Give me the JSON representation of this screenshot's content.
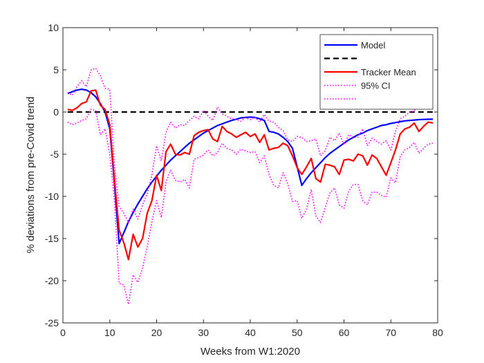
{
  "chart_data": {
    "type": "line",
    "title": "",
    "xlabel": "Weeks from W1:2020",
    "ylabel": "% deviations from pre-Covid trend",
    "xlim": [
      0,
      80
    ],
    "ylim": [
      -25,
      10
    ],
    "xticks": [
      0,
      10,
      20,
      30,
      40,
      50,
      60,
      70,
      80
    ],
    "yticks": [
      -25,
      -20,
      -15,
      -10,
      -5,
      0,
      5,
      10
    ],
    "grid": false,
    "legend_position": "top-right",
    "series": [
      {
        "name": "Model",
        "color": "#0000ff",
        "style": "solid",
        "x": [
          1,
          2,
          3,
          4,
          5,
          6,
          7,
          8,
          9,
          10,
          11,
          12,
          13,
          14,
          15,
          16,
          17,
          18,
          19,
          20,
          21,
          22,
          23,
          24,
          25,
          26,
          27,
          28,
          29,
          30,
          31,
          32,
          33,
          34,
          35,
          36,
          37,
          38,
          39,
          40,
          41,
          42,
          43,
          44,
          45,
          46,
          47,
          48,
          49,
          50,
          51,
          52,
          53,
          54,
          55,
          56,
          57,
          58,
          59,
          60,
          61,
          62,
          63,
          64,
          65,
          66,
          67,
          68,
          69,
          70,
          71,
          72,
          73,
          74,
          75,
          76,
          77,
          78,
          79
        ],
        "y": [
          2.2,
          2.4,
          2.6,
          2.7,
          2.6,
          2.3,
          1.8,
          1.0,
          0,
          -2.0,
          -8.5,
          -15.6,
          -14.3,
          -13.0,
          -11.9,
          -10.9,
          -10.0,
          -9.1,
          -8.3,
          -7.6,
          -6.9,
          -6.3,
          -5.7,
          -5.2,
          -4.7,
          -4.2,
          -3.7,
          -3.3,
          -2.9,
          -2.5,
          -2.2,
          -1.9,
          -1.6,
          -1.4,
          -1.2,
          -1.0,
          -0.85,
          -0.7,
          -0.65,
          -0.6,
          -0.65,
          -0.8,
          -1.0,
          -2.3,
          -2.4,
          -2.6,
          -3.0,
          -3.5,
          -4.3,
          -6.5,
          -8.7,
          -7.9,
          -7.2,
          -6.6,
          -6.0,
          -5.4,
          -4.9,
          -4.5,
          -4.1,
          -3.7,
          -3.3,
          -3.0,
          -2.7,
          -2.5,
          -2.2,
          -2.0,
          -1.8,
          -1.6,
          -1.5,
          -1.35,
          -1.25,
          -1.15,
          -1.05,
          -1.0,
          -0.95,
          -0.9,
          -0.88,
          -0.86,
          -0.85
        ]
      },
      {
        "name": "",
        "color": "#000000",
        "style": "dashed",
        "x": [
          1,
          79
        ],
        "y": [
          0,
          0
        ]
      },
      {
        "name": "Tracker Mean",
        "color": "#ff0000",
        "style": "solid",
        "x": [
          1,
          2,
          3,
          4,
          5,
          6,
          7,
          8,
          9,
          10,
          11,
          12,
          13,
          14,
          15,
          16,
          17,
          18,
          19,
          20,
          21,
          22,
          23,
          24,
          25,
          26,
          27,
          28,
          29,
          30,
          31,
          32,
          33,
          34,
          35,
          36,
          37,
          38,
          39,
          40,
          41,
          42,
          43,
          44,
          45,
          46,
          47,
          48,
          49,
          50,
          51,
          52,
          53,
          54,
          55,
          56,
          57,
          58,
          59,
          60,
          61,
          62,
          63,
          64,
          65,
          66,
          67,
          68,
          69,
          70,
          71,
          72,
          73,
          74,
          75,
          76,
          77,
          78,
          79
        ],
        "y": [
          0.3,
          0.2,
          0.5,
          1.0,
          1.2,
          2.5,
          2.6,
          0.8,
          0.3,
          -1.5,
          -8.0,
          -14.0,
          -15.5,
          -17.5,
          -14.5,
          -16.0,
          -15.0,
          -12.0,
          -10.5,
          -7.5,
          -9.3,
          -4.7,
          -3.8,
          -5.0,
          -5.1,
          -4.8,
          -5.0,
          -2.8,
          -2.4,
          -2.2,
          -2.1,
          -3.2,
          -3.5,
          -1.7,
          -2.3,
          -2.6,
          -3.0,
          -2.7,
          -2.4,
          -2.9,
          -2.6,
          -3.6,
          -2.7,
          -4.5,
          -4.3,
          -4.2,
          -3.7,
          -4.0,
          -5.2,
          -6.6,
          -7.4,
          -6.5,
          -5.5,
          -7.9,
          -8.3,
          -6.2,
          -6.3,
          -6.5,
          -7.4,
          -5.7,
          -5.6,
          -5.8,
          -5.0,
          -5.2,
          -6.3,
          -5.1,
          -5.5,
          -6.5,
          -7.5,
          -6.0,
          -4.5,
          -2.6,
          -2.0,
          -1.8,
          -1.3,
          -2.3,
          -1.7,
          -1.2,
          -1.3
        ]
      },
      {
        "name": "95% CI",
        "color": "#ff00ff",
        "style": "dotted",
        "x": [
          1,
          2,
          3,
          4,
          5,
          6,
          7,
          8,
          9,
          10,
          11,
          12,
          13,
          14,
          15,
          16,
          17,
          18,
          19,
          20,
          21,
          22,
          23,
          24,
          25,
          26,
          27,
          28,
          29,
          30,
          31,
          32,
          33,
          34,
          35,
          36,
          37,
          38,
          39,
          40,
          41,
          42,
          43,
          44,
          45,
          46,
          47,
          48,
          49,
          50,
          51,
          52,
          53,
          54,
          55,
          56,
          57,
          58,
          59,
          60,
          61,
          62,
          63,
          64,
          65,
          66,
          67,
          68,
          69,
          70,
          71,
          72,
          73,
          74,
          75,
          76,
          77,
          78,
          79
        ],
        "y": [
          2.3,
          2.0,
          3.0,
          3.7,
          3.0,
          5.0,
          5.2,
          4.3,
          2.8,
          2.7,
          -6.2,
          -11.2,
          -12.0,
          -13.1,
          -11.5,
          -12.7,
          -11.0,
          -9.7,
          -7.5,
          -4.0,
          -5.8,
          -2.4,
          -1.2,
          -1.9,
          -1.5,
          -1.6,
          -1.0,
          -0.5,
          -0.8,
          0.2,
          -0.5,
          -1.0,
          0.6,
          -0.2,
          -0.5,
          -0.8,
          -0.9,
          -1.1,
          -0.7,
          -0.9,
          -0.6,
          -1.2,
          -0.3,
          -1.1,
          -1.2,
          -1.8,
          -2.2,
          -3.3,
          -3.5,
          -2.9,
          -3.0,
          -3.5,
          -3.4,
          -3.2,
          -5.2,
          -4.6,
          -3.0,
          -3.4,
          -2.5,
          -3.9,
          -2.7,
          -3.0,
          -3.0,
          -2.0,
          -4.0,
          -3.1,
          -3.5,
          -3.8,
          -3.4,
          -4.5,
          -2.3,
          -0.8,
          -0.5,
          0,
          0.1,
          1.3,
          1.6,
          1.4,
          1.7
        ]
      },
      {
        "name": "",
        "color": "#ff00ff",
        "style": "dotted",
        "x": [
          1,
          2,
          3,
          4,
          5,
          6,
          7,
          8,
          9,
          10,
          11,
          12,
          13,
          14,
          15,
          16,
          17,
          18,
          19,
          20,
          21,
          22,
          23,
          24,
          25,
          26,
          27,
          28,
          29,
          30,
          31,
          32,
          33,
          34,
          35,
          36,
          37,
          38,
          39,
          40,
          41,
          42,
          43,
          44,
          45,
          46,
          47,
          48,
          49,
          50,
          51,
          52,
          53,
          54,
          55,
          56,
          57,
          58,
          59,
          60,
          61,
          62,
          63,
          64,
          65,
          66,
          67,
          68,
          69,
          70,
          71,
          72,
          73,
          74,
          75,
          76,
          77,
          78,
          79
        ],
        "y": [
          -1.2,
          -1.5,
          -1.3,
          -1.0,
          -0.8,
          0.3,
          0.2,
          -2.7,
          -2.0,
          -5.0,
          -10.5,
          -20.3,
          -20.5,
          -22.8,
          -19.3,
          -20.2,
          -18.5,
          -16.0,
          -13.0,
          -10.5,
          -12.5,
          -8.3,
          -6.9,
          -8.1,
          -8.3,
          -8.0,
          -9.0,
          -5.6,
          -5.4,
          -5.1,
          -4.5,
          -5.2,
          -4.8,
          -3.7,
          -4.3,
          -4.5,
          -5.0,
          -4.4,
          -4.6,
          -4.8,
          -4.7,
          -6.0,
          -5.2,
          -7.4,
          -8.7,
          -9.0,
          -7.2,
          -8.5,
          -10.6,
          -10.5,
          -12.6,
          -11.5,
          -9.2,
          -12.3,
          -13.1,
          -11.3,
          -9.6,
          -9.0,
          -11.0,
          -11.4,
          -9.4,
          -8.6,
          -8.6,
          -10.5,
          -11.0,
          -9.5,
          -9.5,
          -9.9,
          -10.1,
          -7.8,
          -8.4,
          -5.3,
          -4.5,
          -4.2,
          -3.6,
          -4.9,
          -4.3,
          -3.8,
          -3.7
        ]
      }
    ],
    "legend": [
      {
        "label": "Model",
        "color": "#0000ff",
        "style": "solid"
      },
      {
        "label": "",
        "color": "#000000",
        "style": "dashed"
      },
      {
        "label": "Tracker Mean",
        "color": "#ff0000",
        "style": "solid"
      },
      {
        "label": "95% CI",
        "color": "#ff00ff",
        "style": "dotted"
      },
      {
        "label": "",
        "color": "#ff00ff",
        "style": "dotted"
      }
    ]
  }
}
